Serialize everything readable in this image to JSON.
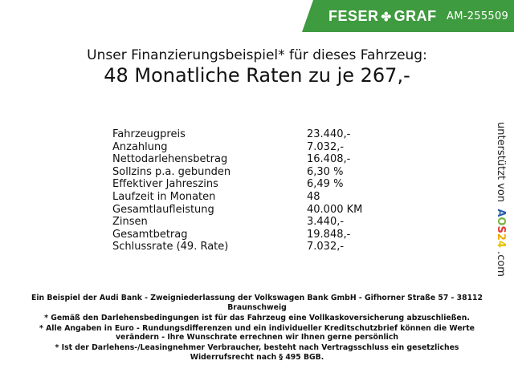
{
  "header": {
    "brand_left": "FESER",
    "brand_icon": "clover-icon",
    "brand_right": "GRAF",
    "vehicle_code": "AM-255509",
    "banner_color": "#3f9b3f"
  },
  "title": {
    "line1": "Unser Finanzierungsbeispiel* für dieses Fahrzeug:",
    "line2": "48 Monatliche Raten zu je 267,-"
  },
  "rows": [
    {
      "label": "Fahrzeugpreis",
      "value": "23.440,-"
    },
    {
      "label": "Anzahlung",
      "value": "7.032,-"
    },
    {
      "label": "Nettodarlehensbetrag",
      "value": "16.408,-"
    },
    {
      "label": "Sollzins p.a. gebunden",
      "value": "6,30 %"
    },
    {
      "label": "Effektiver Jahreszins",
      "value": "6,49 %"
    },
    {
      "label": "Laufzeit in Monaten",
      "value": "48"
    },
    {
      "label": "Gesamtlaufleistung",
      "value": "40.000 KM"
    },
    {
      "label": "Zinsen",
      "value": "3.440,-"
    },
    {
      "label": "Gesamtbetrag",
      "value": "19.848,-"
    },
    {
      "label": "Schlussrate (49. Rate)",
      "value": "7.032,-"
    }
  ],
  "side": {
    "prefix": "unterstützt von",
    "logo": [
      "A",
      "O",
      "S",
      "2",
      "4"
    ],
    "suffix": ".com"
  },
  "footer": [
    "Ein Beispiel der Audi Bank - Zweigniederlassung der Volkswagen Bank GmbH - Gifhorner Straße 57 - 38112 Braunschweig",
    "* Gemäß den Darlehensbedingungen ist für das Fahrzeug eine Vollkaskoversicherung abzuschließen.",
    "* Alle Angaben in Euro - Rundungsdifferenzen und ein individueller Kreditschutzbrief können die Werte verändern - Ihre Wunschrate errechnen wir Ihnen gerne persönlich",
    "* Ist der Darlehens-/Leasingnehmer Verbraucher, besteht nach Vertragsschluss ein gesetzliches Widerrufsrecht nach § 495 BGB."
  ]
}
